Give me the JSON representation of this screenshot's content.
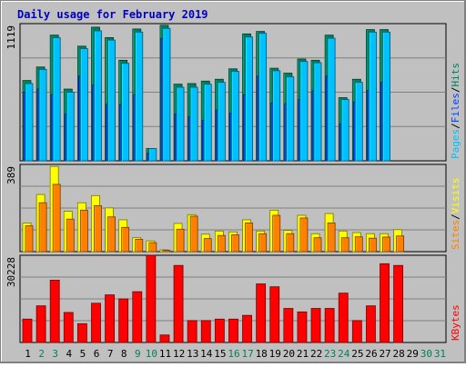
{
  "title": "Daily usage for February 2019",
  "colors": {
    "hits": "#00805c",
    "files": "#0040ff",
    "pages": "#00c0ff",
    "visits": "#ffff00",
    "sites": "#ff8000",
    "kbytes": "#ff0000",
    "background": "#c0c0c0",
    "weekend_label": "#00805c",
    "weekday_label": "#000000"
  },
  "panels": {
    "top": {
      "max_label": "1119",
      "legend": [
        {
          "key": "pages",
          "text": "Pages"
        },
        {
          "key": "sep",
          "text": "/"
        },
        {
          "key": "files",
          "text": "Files"
        },
        {
          "key": "sep",
          "text": "/"
        },
        {
          "key": "hits",
          "text": "Hits"
        }
      ]
    },
    "middle": {
      "max_label": "389",
      "legend": [
        {
          "key": "sites",
          "text": "Sites"
        },
        {
          "key": "sep",
          "text": "/"
        },
        {
          "key": "visits",
          "text": "Visits"
        }
      ]
    },
    "bottom": {
      "max_label": "30228",
      "legend": [
        {
          "key": "kbytes",
          "text": "KBytes"
        }
      ]
    }
  },
  "chart_data": {
    "type": "bar",
    "title": "Daily usage for February 2019",
    "categories": [
      "1",
      "2",
      "3",
      "4",
      "5",
      "6",
      "7",
      "8",
      "9",
      "10",
      "11",
      "12",
      "13",
      "14",
      "15",
      "16",
      "17",
      "18",
      "19",
      "20",
      "21",
      "22",
      "23",
      "24",
      "25",
      "26",
      "27",
      "28",
      "29",
      "30",
      "31"
    ],
    "weekend_days": [
      2,
      3,
      9,
      10,
      16,
      17,
      23,
      24,
      30,
      31
    ],
    "panels": [
      {
        "name": "top",
        "ymax": 1119,
        "series": [
          {
            "name": "Hits",
            "color": "#00805c",
            "values": [
              655,
              765,
              1025,
              585,
              935,
              1090,
              1005,
              820,
              1075,
              100,
              1105,
              625,
              630,
              650,
              665,
              750,
              1035,
              1055,
              755,
              715,
              830,
              820,
              1025,
              515,
              665,
              1070,
              1070,
              0,
              0,
              0,
              0
            ]
          },
          {
            "name": "Files",
            "color": "#0040ff",
            "values": [
              560,
              585,
              540,
              380,
              690,
              620,
              460,
              460,
              540,
              60,
              1000,
              380,
              360,
              330,
              415,
              390,
              540,
              690,
              470,
              465,
              500,
              570,
              690,
              300,
              480,
              575,
              640,
              0,
              0,
              0,
              0
            ]
          },
          {
            "name": "Pages",
            "color": "#00c0ff",
            "values": [
              630,
              745,
              1005,
              560,
              915,
              1060,
              985,
              795,
              1050,
              100,
              1080,
              600,
              600,
              625,
              640,
              730,
              1010,
              1040,
              735,
              685,
              810,
              800,
              1000,
              500,
              640,
              1050,
              1050,
              0,
              0,
              0,
              0
            ]
          }
        ]
      },
      {
        "name": "middle",
        "ymax": 389,
        "series": [
          {
            "name": "Visits",
            "color": "#ffff00",
            "values": [
              128,
              255,
              380,
              180,
              218,
              250,
              195,
              142,
              62,
              48,
              8,
              126,
              165,
              78,
              92,
              88,
              142,
              92,
              185,
              95,
              162,
              80,
              170,
              92,
              85,
              80,
              80,
              98,
              0,
              0,
              0
            ]
          },
          {
            "name": "Sites",
            "color": "#ff8000",
            "values": [
              115,
              218,
              300,
              145,
              185,
              205,
              155,
              108,
              55,
              40,
              6,
              100,
              158,
              58,
              72,
              75,
              128,
              80,
              162,
              80,
              150,
              62,
              128,
              62,
              66,
              60,
              65,
              70,
              0,
              0,
              0
            ]
          }
        ]
      },
      {
        "name": "bottom",
        "ymax": 30228,
        "series": [
          {
            "name": "KBytes",
            "color": "#ff0000",
            "values": [
              8100,
              12700,
              21600,
              10400,
              6500,
              13600,
              16500,
              15100,
              17600,
              30228,
              2600,
              26700,
              7600,
              7600,
              8100,
              8100,
              9400,
              20300,
              19300,
              11800,
              10600,
              11800,
              11800,
              17100,
              7600,
              12700,
              27300,
              26700,
              0,
              0,
              0
            ]
          }
        ]
      }
    ]
  }
}
